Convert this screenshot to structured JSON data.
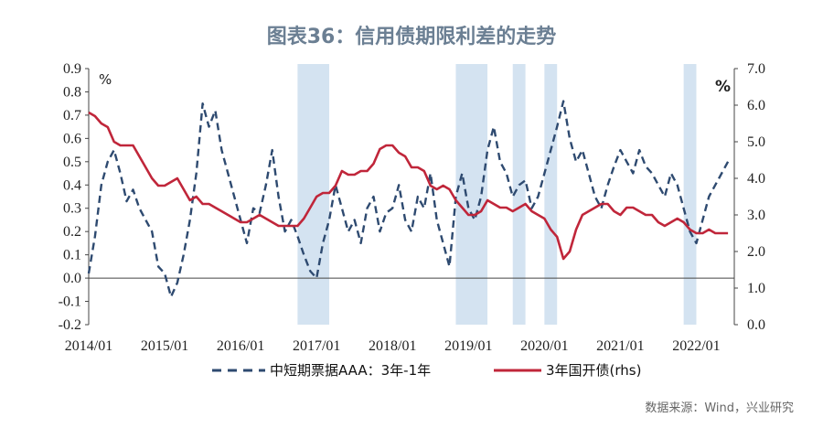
{
  "chart_data": {
    "type": "line",
    "title": "图表36：信用债期限利差的走势",
    "left_unit": "%",
    "right_unit": "%",
    "source": "数据来源：Wind，兴业研究",
    "x_ticks": [
      "2014/01",
      "2015/01",
      "2016/01",
      "2017/01",
      "2018/01",
      "2019/01",
      "2020/01",
      "2021/01",
      "2022/01"
    ],
    "y_left_ticks": [
      "0.9",
      "0.8",
      "0.7",
      "0.6",
      "0.5",
      "0.4",
      "0.3",
      "0.2",
      "0.1",
      "0.0",
      "-0.1",
      "-0.2"
    ],
    "y_right_ticks": [
      "7.0",
      "6.0",
      "5.0",
      "4.0",
      "3.0",
      "2.0",
      "1.0",
      "0.0"
    ],
    "ylim_left": [
      -0.2,
      0.9
    ],
    "ylim_right": [
      0.0,
      7.0
    ],
    "shaded_periods": [
      [
        "2016-10",
        "2017-03"
      ],
      [
        "2018-11",
        "2019-04"
      ],
      [
        "2019-08",
        "2019-10"
      ],
      [
        "2020-01",
        "2020-03"
      ],
      [
        "2021-11",
        "2022-01"
      ]
    ],
    "series": [
      {
        "name": "中短期票据AAA：3年-1年",
        "axis": "left",
        "color": "#2e4a70",
        "style": "dashed",
        "points": [
          [
            "2014-01",
            0.02
          ],
          [
            "2014-02",
            0.18
          ],
          [
            "2014-03",
            0.4
          ],
          [
            "2014-04",
            0.5
          ],
          [
            "2014-05",
            0.55
          ],
          [
            "2014-06",
            0.45
          ],
          [
            "2014-07",
            0.33
          ],
          [
            "2014-08",
            0.38
          ],
          [
            "2014-09",
            0.3
          ],
          [
            "2014-10",
            0.25
          ],
          [
            "2014-11",
            0.2
          ],
          [
            "2014-12",
            0.05
          ],
          [
            "2015-01",
            0.02
          ],
          [
            "2015-02",
            -0.08
          ],
          [
            "2015-03",
            -0.02
          ],
          [
            "2015-04",
            0.1
          ],
          [
            "2015-05",
            0.25
          ],
          [
            "2015-06",
            0.45
          ],
          [
            "2015-07",
            0.75
          ],
          [
            "2015-08",
            0.65
          ],
          [
            "2015-09",
            0.72
          ],
          [
            "2015-10",
            0.55
          ],
          [
            "2015-11",
            0.45
          ],
          [
            "2015-12",
            0.35
          ],
          [
            "2016-01",
            0.25
          ],
          [
            "2016-02",
            0.15
          ],
          [
            "2016-03",
            0.3
          ],
          [
            "2016-04",
            0.28
          ],
          [
            "2016-05",
            0.4
          ],
          [
            "2016-06",
            0.55
          ],
          [
            "2016-07",
            0.35
          ],
          [
            "2016-08",
            0.2
          ],
          [
            "2016-09",
            0.25
          ],
          [
            "2016-10",
            0.18
          ],
          [
            "2016-11",
            0.1
          ],
          [
            "2016-12",
            0.03
          ],
          [
            "2017-01",
            0.0
          ],
          [
            "2017-02",
            0.15
          ],
          [
            "2017-03",
            0.25
          ],
          [
            "2017-04",
            0.4
          ],
          [
            "2017-05",
            0.3
          ],
          [
            "2017-06",
            0.2
          ],
          [
            "2017-07",
            0.25
          ],
          [
            "2017-08",
            0.15
          ],
          [
            "2017-09",
            0.3
          ],
          [
            "2017-10",
            0.35
          ],
          [
            "2017-11",
            0.2
          ],
          [
            "2017-12",
            0.28
          ],
          [
            "2018-01",
            0.3
          ],
          [
            "2018-02",
            0.4
          ],
          [
            "2018-03",
            0.25
          ],
          [
            "2018-04",
            0.2
          ],
          [
            "2018-05",
            0.35
          ],
          [
            "2018-06",
            0.3
          ],
          [
            "2018-07",
            0.45
          ],
          [
            "2018-08",
            0.25
          ],
          [
            "2018-09",
            0.15
          ],
          [
            "2018-10",
            0.05
          ],
          [
            "2018-11",
            0.35
          ],
          [
            "2018-12",
            0.45
          ],
          [
            "2019-01",
            0.3
          ],
          [
            "2019-02",
            0.25
          ],
          [
            "2019-03",
            0.35
          ],
          [
            "2019-04",
            0.55
          ],
          [
            "2019-05",
            0.65
          ],
          [
            "2019-06",
            0.5
          ],
          [
            "2019-07",
            0.45
          ],
          [
            "2019-08",
            0.35
          ],
          [
            "2019-09",
            0.4
          ],
          [
            "2019-10",
            0.42
          ],
          [
            "2019-11",
            0.3
          ],
          [
            "2019-12",
            0.35
          ],
          [
            "2020-01",
            0.45
          ],
          [
            "2020-02",
            0.55
          ],
          [
            "2020-03",
            0.65
          ],
          [
            "2020-04",
            0.76
          ],
          [
            "2020-05",
            0.6
          ],
          [
            "2020-06",
            0.5
          ],
          [
            "2020-07",
            0.55
          ],
          [
            "2020-08",
            0.45
          ],
          [
            "2020-09",
            0.35
          ],
          [
            "2020-10",
            0.3
          ],
          [
            "2020-11",
            0.4
          ],
          [
            "2020-12",
            0.48
          ],
          [
            "2021-01",
            0.55
          ],
          [
            "2021-02",
            0.5
          ],
          [
            "2021-03",
            0.45
          ],
          [
            "2021-04",
            0.55
          ],
          [
            "2021-05",
            0.48
          ],
          [
            "2021-06",
            0.45
          ],
          [
            "2021-07",
            0.4
          ],
          [
            "2021-08",
            0.35
          ],
          [
            "2021-09",
            0.45
          ],
          [
            "2021-10",
            0.4
          ],
          [
            "2021-11",
            0.3
          ],
          [
            "2021-12",
            0.2
          ],
          [
            "2022-01",
            0.15
          ],
          [
            "2022-02",
            0.25
          ],
          [
            "2022-03",
            0.35
          ],
          [
            "2022-04",
            0.4
          ],
          [
            "2022-05",
            0.45
          ],
          [
            "2022-06",
            0.5
          ]
        ]
      },
      {
        "name": "3年国开债(rhs)",
        "axis": "right",
        "color": "#c0263a",
        "style": "solid",
        "points": [
          [
            "2014-01",
            5.8
          ],
          [
            "2014-02",
            5.7
          ],
          [
            "2014-03",
            5.5
          ],
          [
            "2014-04",
            5.4
          ],
          [
            "2014-05",
            5.0
          ],
          [
            "2014-06",
            4.9
          ],
          [
            "2014-07",
            4.9
          ],
          [
            "2014-08",
            4.9
          ],
          [
            "2014-09",
            4.6
          ],
          [
            "2014-10",
            4.3
          ],
          [
            "2014-11",
            4.0
          ],
          [
            "2014-12",
            3.8
          ],
          [
            "2015-01",
            3.8
          ],
          [
            "2015-02",
            3.9
          ],
          [
            "2015-03",
            4.0
          ],
          [
            "2015-04",
            3.7
          ],
          [
            "2015-05",
            3.4
          ],
          [
            "2015-06",
            3.5
          ],
          [
            "2015-07",
            3.3
          ],
          [
            "2015-08",
            3.3
          ],
          [
            "2015-09",
            3.2
          ],
          [
            "2015-10",
            3.1
          ],
          [
            "2015-11",
            3.0
          ],
          [
            "2015-12",
            2.9
          ],
          [
            "2016-01",
            2.8
          ],
          [
            "2016-02",
            2.8
          ],
          [
            "2016-03",
            2.9
          ],
          [
            "2016-04",
            3.0
          ],
          [
            "2016-05",
            2.9
          ],
          [
            "2016-06",
            2.8
          ],
          [
            "2016-07",
            2.7
          ],
          [
            "2016-08",
            2.7
          ],
          [
            "2016-09",
            2.7
          ],
          [
            "2016-10",
            2.7
          ],
          [
            "2016-11",
            2.9
          ],
          [
            "2016-12",
            3.2
          ],
          [
            "2017-01",
            3.5
          ],
          [
            "2017-02",
            3.6
          ],
          [
            "2017-03",
            3.6
          ],
          [
            "2017-04",
            3.8
          ],
          [
            "2017-05",
            4.2
          ],
          [
            "2017-06",
            4.1
          ],
          [
            "2017-07",
            4.1
          ],
          [
            "2017-08",
            4.2
          ],
          [
            "2017-09",
            4.2
          ],
          [
            "2017-10",
            4.4
          ],
          [
            "2017-11",
            4.8
          ],
          [
            "2017-12",
            4.9
          ],
          [
            "2018-01",
            4.9
          ],
          [
            "2018-02",
            4.7
          ],
          [
            "2018-03",
            4.6
          ],
          [
            "2018-04",
            4.3
          ],
          [
            "2018-05",
            4.3
          ],
          [
            "2018-06",
            4.2
          ],
          [
            "2018-07",
            3.8
          ],
          [
            "2018-08",
            3.7
          ],
          [
            "2018-09",
            3.8
          ],
          [
            "2018-10",
            3.7
          ],
          [
            "2018-11",
            3.4
          ],
          [
            "2018-12",
            3.2
          ],
          [
            "2019-01",
            3.0
          ],
          [
            "2019-02",
            3.0
          ],
          [
            "2019-03",
            3.1
          ],
          [
            "2019-04",
            3.4
          ],
          [
            "2019-05",
            3.3
          ],
          [
            "2019-06",
            3.2
          ],
          [
            "2019-07",
            3.2
          ],
          [
            "2019-08",
            3.1
          ],
          [
            "2019-09",
            3.2
          ],
          [
            "2019-10",
            3.3
          ],
          [
            "2019-11",
            3.1
          ],
          [
            "2019-12",
            3.0
          ],
          [
            "2020-01",
            2.9
          ],
          [
            "2020-02",
            2.6
          ],
          [
            "2020-03",
            2.4
          ],
          [
            "2020-04",
            1.8
          ],
          [
            "2020-05",
            2.0
          ],
          [
            "2020-06",
            2.6
          ],
          [
            "2020-07",
            3.0
          ],
          [
            "2020-08",
            3.1
          ],
          [
            "2020-09",
            3.2
          ],
          [
            "2020-10",
            3.3
          ],
          [
            "2020-11",
            3.3
          ],
          [
            "2020-12",
            3.1
          ],
          [
            "2021-01",
            3.0
          ],
          [
            "2021-02",
            3.2
          ],
          [
            "2021-03",
            3.2
          ],
          [
            "2021-04",
            3.1
          ],
          [
            "2021-05",
            3.0
          ],
          [
            "2021-06",
            3.0
          ],
          [
            "2021-07",
            2.8
          ],
          [
            "2021-08",
            2.7
          ],
          [
            "2021-09",
            2.8
          ],
          [
            "2021-10",
            2.9
          ],
          [
            "2021-11",
            2.8
          ],
          [
            "2021-12",
            2.6
          ],
          [
            "2022-01",
            2.5
          ],
          [
            "2022-02",
            2.5
          ],
          [
            "2022-03",
            2.6
          ],
          [
            "2022-04",
            2.5
          ],
          [
            "2022-05",
            2.5
          ],
          [
            "2022-06",
            2.5
          ]
        ]
      }
    ]
  }
}
